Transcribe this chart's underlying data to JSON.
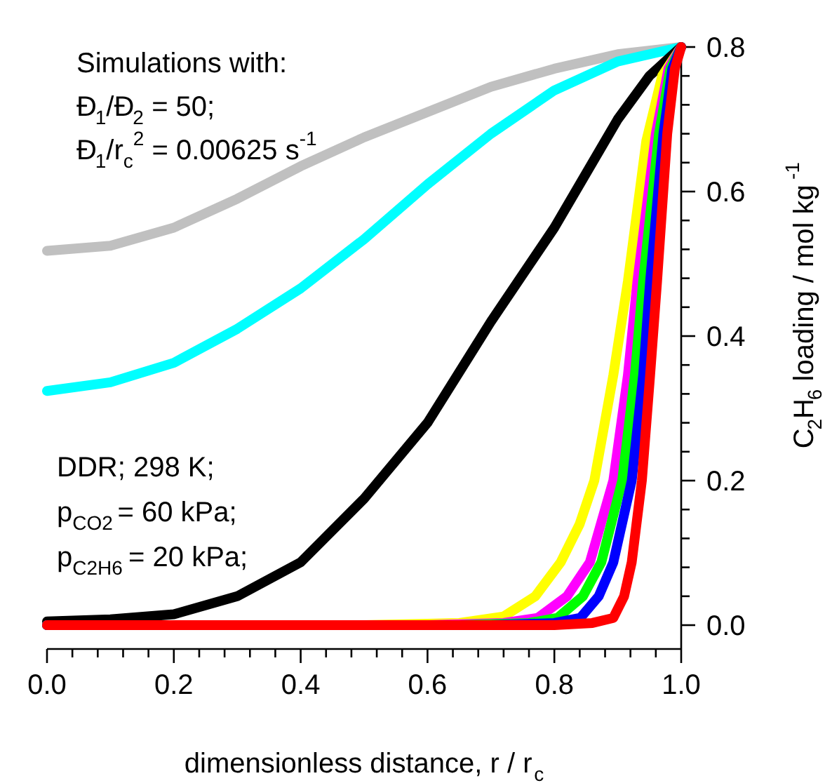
{
  "chart_data": {
    "type": "line",
    "xlabel": "dimensionless distance, r / r$_{c}$",
    "ylabel": "C$_{2}$H$_{6}$ loading / mol kg$^{-1}$",
    "annotations": [
      "Simulations with:",
      "Đ$_{1}$/Đ$_{2}$ = 50;",
      "Đ$_{1}$/r$_{c}$$^{2}$ = 0.00625 s$^{-1}$",
      "DDR; 298 K;",
      "p$_{CO2}$ = 60 kPa;",
      "p$_{C2H6}$ = 20 kPa;"
    ],
    "xlim": [
      0,
      1
    ],
    "ylim": [
      -0.033,
      0.8
    ],
    "xticks": [
      {
        "value": 0,
        "label": "0.0"
      },
      0.2,
      0.4,
      0.6,
      0.8,
      {
        "value": 1,
        "label": "1.0"
      }
    ],
    "yticks": [
      {
        "value": 0,
        "label": "0.0"
      },
      0.2,
      0.4,
      0.6,
      0.8
    ],
    "grid": false,
    "marker": "none",
    "line_style": "solid",
    "series": [
      {
        "color": "#c0c0c0",
        "x": [
          0,
          0.1,
          0.2,
          0.3,
          0.4,
          0.5,
          0.6,
          0.7,
          0.8,
          0.9,
          1.0
        ],
        "values": [
          0.518,
          0.525,
          0.55,
          0.59,
          0.635,
          0.675,
          0.71,
          0.745,
          0.77,
          0.79,
          0.8
        ]
      },
      {
        "color": "#00ffff",
        "x": [
          0,
          0.1,
          0.2,
          0.3,
          0.4,
          0.5,
          0.6,
          0.7,
          0.8,
          0.9,
          1.0
        ],
        "values": [
          0.324,
          0.336,
          0.363,
          0.41,
          0.466,
          0.534,
          0.61,
          0.68,
          0.74,
          0.78,
          0.8
        ]
      },
      {
        "color": "#000000",
        "x": [
          0,
          0.1,
          0.2,
          0.3,
          0.4,
          0.5,
          0.6,
          0.7,
          0.8,
          0.9,
          0.95,
          1.0
        ],
        "values": [
          0.005,
          0.008,
          0.015,
          0.04,
          0.087,
          0.175,
          0.28,
          0.42,
          0.55,
          0.7,
          0.76,
          0.8
        ]
      },
      {
        "color": "#ffff00",
        "x": [
          0,
          0.5,
          0.65,
          0.72,
          0.77,
          0.81,
          0.84,
          0.863,
          0.893,
          0.916,
          0.945,
          0.97,
          1.0
        ],
        "values": [
          0.0,
          0.0,
          0.003,
          0.012,
          0.04,
          0.087,
          0.14,
          0.2,
          0.346,
          0.476,
          0.67,
          0.76,
          0.8
        ]
      },
      {
        "color": "#ff00ff",
        "x": [
          0,
          0.6,
          0.72,
          0.774,
          0.82,
          0.856,
          0.893,
          0.916,
          0.931,
          0.96,
          0.98,
          1.0
        ],
        "values": [
          0.0,
          0.0,
          0.003,
          0.01,
          0.04,
          0.087,
          0.2,
          0.346,
          0.476,
          0.68,
          0.77,
          0.8
        ]
      },
      {
        "color": "#00ff00",
        "x": [
          0,
          0.65,
          0.76,
          0.805,
          0.845,
          0.874,
          0.907,
          0.927,
          0.94,
          0.965,
          0.983,
          1.0
        ],
        "values": [
          0.0,
          0.0,
          0.003,
          0.01,
          0.04,
          0.087,
          0.2,
          0.346,
          0.476,
          0.68,
          0.77,
          0.8
        ]
      },
      {
        "color": "#0000ff",
        "x": [
          0,
          0.7,
          0.8,
          0.841,
          0.87,
          0.893,
          0.922,
          0.94,
          0.951,
          0.972,
          0.986,
          1.0
        ],
        "values": [
          0.0,
          0.0,
          0.003,
          0.01,
          0.04,
          0.087,
          0.2,
          0.346,
          0.476,
          0.68,
          0.77,
          0.8
        ]
      },
      {
        "color": "#ff0000",
        "x": [
          0,
          0.8,
          0.86,
          0.893,
          0.91,
          0.922,
          0.938,
          0.951,
          0.962,
          0.978,
          0.99,
          1.0
        ],
        "values": [
          0.0,
          0.0,
          0.003,
          0.01,
          0.04,
          0.087,
          0.2,
          0.346,
          0.476,
          0.68,
          0.77,
          0.8
        ]
      }
    ]
  }
}
